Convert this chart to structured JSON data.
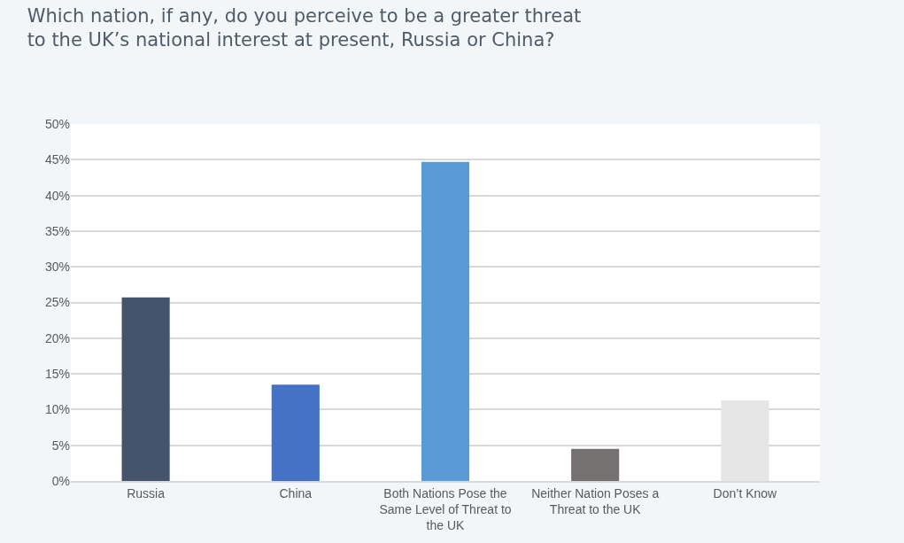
{
  "chart_data": {
    "type": "bar",
    "title": "Which nation, if any, do you perceive to be a greater threat to the UK’s national interest at present, Russia or China?",
    "categories": [
      "Russia",
      "China",
      "Both Nations Pose the Same Level of Threat to the UK",
      "Neither Nation Poses a Threat to the UK",
      "Don’t Know"
    ],
    "values": [
      25.7,
      13.5,
      44.7,
      4.5,
      11.3
    ],
    "colors": [
      "#44546a",
      "#4472c4",
      "#5b9bd5",
      "#767171",
      "#e7e6e6"
    ],
    "ylim": [
      0,
      50
    ],
    "yticks": [
      {
        "value": 0,
        "label": "0%"
      },
      {
        "value": 5,
        "label": "5%"
      },
      {
        "value": 10,
        "label": "10%"
      },
      {
        "value": 15,
        "label": "15%"
      },
      {
        "value": 20,
        "label": "20%"
      },
      {
        "value": 25,
        "label": "25%"
      },
      {
        "value": 30,
        "label": "30%"
      },
      {
        "value": 35,
        "label": "35%"
      },
      {
        "value": 40,
        "label": "40%"
      },
      {
        "value": 45,
        "label": "45%"
      },
      {
        "value": 50,
        "label": "50%"
      }
    ],
    "grid": "y"
  }
}
